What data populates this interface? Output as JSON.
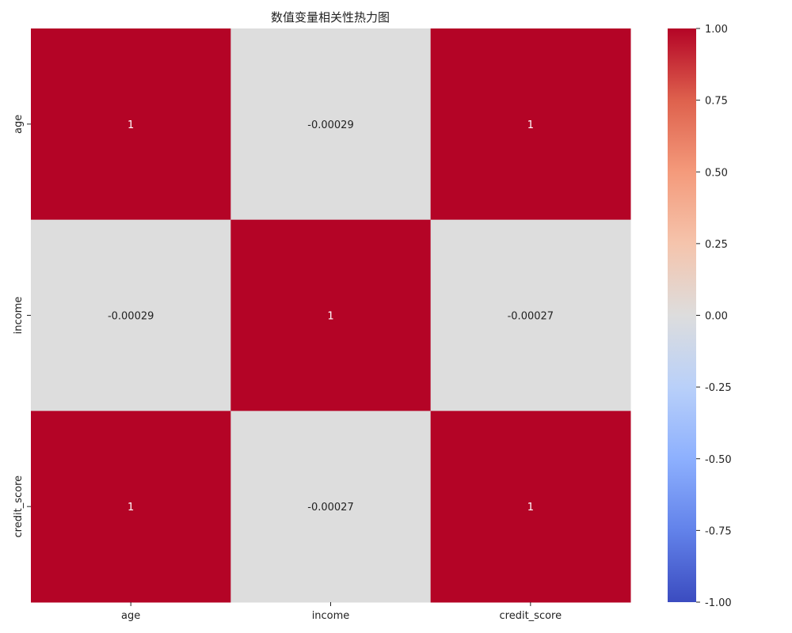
{
  "chart_data": {
    "type": "heatmap",
    "title": "数值变量相关性热力图",
    "x_labels": [
      "age",
      "income",
      "credit_score"
    ],
    "y_labels": [
      "age",
      "income",
      "credit_score"
    ],
    "values": [
      [
        1,
        -0.00029,
        1
      ],
      [
        -0.00029,
        1,
        -0.00027
      ],
      [
        1,
        -0.00027,
        1
      ]
    ],
    "annotations": [
      [
        "1",
        "-0.00029",
        "1"
      ],
      [
        "-0.00029",
        "1",
        "-0.00027"
      ],
      [
        "1",
        "-0.00027",
        "1"
      ]
    ],
    "colormap": "coolwarm",
    "vmin": -1,
    "vmax": 1,
    "colorbar_ticks": [
      "1.00",
      "0.75",
      "0.50",
      "0.25",
      "0.00",
      "-0.25",
      "-0.50",
      "-0.75",
      "-1.00"
    ],
    "colors": {
      "min": "#3b4cc0",
      "mid": "#dddddd",
      "max": "#b40426",
      "text_on_dark": "#ffffff",
      "text_on_light": "#222222"
    }
  }
}
